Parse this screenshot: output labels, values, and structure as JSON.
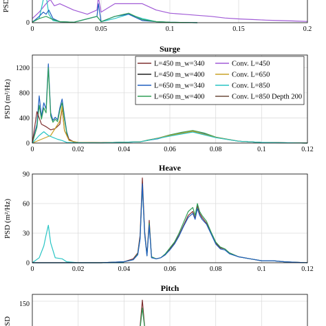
{
  "colors": {
    "L450_340": "#7f2f2f",
    "L450_400": "#1f1f1f",
    "L650_340": "#1f5fbf",
    "L650_400": "#2e9e57",
    "conv450": "#a05ad6",
    "conv650": "#c9a227",
    "conv850": "#27c4c4",
    "conv850d200": "#6b4a3a"
  },
  "chart_data": [
    {
      "id": "top",
      "type": "line",
      "title": "",
      "ylabel": "PSD",
      "xlim": [
        0,
        0.2
      ],
      "xticks": [
        "0",
        "0.05",
        "0.1",
        "0.15",
        "0.2"
      ],
      "yticks": [
        "0"
      ],
      "series": [
        {
          "name": "Conv. L=450",
          "color_key": "conv450",
          "x": [
            0,
            0.005,
            0.01,
            0.013,
            0.016,
            0.02,
            0.03,
            0.04,
            0.047,
            0.048,
            0.05,
            0.06,
            0.07,
            0.08,
            0.09,
            0.1,
            0.11,
            0.12,
            0.13,
            0.14,
            0.15,
            0.16,
            0.17,
            0.18,
            0.19,
            0.2
          ],
          "y": [
            0.2,
            0.5,
            0.9,
            1.1,
            0.8,
            0.9,
            0.6,
            0.4,
            0.6,
            1.2,
            0.5,
            0.9,
            0.9,
            0.9,
            0.6,
            0.45,
            0.4,
            0.35,
            0.3,
            0.22,
            0.18,
            0.15,
            0.12,
            0.1,
            0.08,
            0.06
          ]
        },
        {
          "name": "Conv. L=850",
          "color_key": "conv850",
          "x": [
            0,
            0.005,
            0.008,
            0.01,
            0.012,
            0.015,
            0.02,
            0.03,
            0.047,
            0.05,
            0.06,
            0.07,
            0.08,
            0.09,
            0.1,
            0.12
          ],
          "y": [
            0.05,
            0.2,
            1.1,
            1.3,
            0.4,
            0.1,
            0.05,
            0.02,
            0.3,
            0.05,
            0.2,
            0.4,
            0.2,
            0.05,
            0.02,
            0.0
          ]
        },
        {
          "name": "L=650 m_w=340",
          "color_key": "L650_340",
          "x": [
            0,
            0.005,
            0.008,
            0.01,
            0.012,
            0.015,
            0.02,
            0.03,
            0.047,
            0.048,
            0.05,
            0.06,
            0.07,
            0.075,
            0.08,
            0.09,
            0.1,
            0.12
          ],
          "y": [
            0.02,
            0.3,
            0.5,
            0.4,
            0.6,
            0.2,
            0.05,
            0.02,
            0.3,
            0.9,
            0.05,
            0.3,
            0.4,
            0.25,
            0.1,
            0.05,
            0.02,
            0.0
          ]
        },
        {
          "name": "L=650 m_w=400",
          "color_key": "L650_400",
          "x": [
            0,
            0.005,
            0.01,
            0.015,
            0.02,
            0.03,
            0.047,
            0.05,
            0.06,
            0.07,
            0.08,
            0.09,
            0.1,
            0.12
          ],
          "y": [
            0.02,
            0.2,
            0.3,
            0.15,
            0.05,
            0.02,
            0.3,
            0.05,
            0.3,
            0.45,
            0.15,
            0.05,
            0.02,
            0.0
          ]
        }
      ]
    },
    {
      "id": "surge",
      "type": "line",
      "title": "Surge",
      "ylabel": "PSD (m²/Hz)",
      "xlim": [
        0,
        0.12
      ],
      "ylim": [
        0,
        1400
      ],
      "xticks": [
        "0",
        "0.02",
        "0.04",
        "0.06",
        "0.08",
        "0.1",
        "0.12"
      ],
      "yticks": [
        "0",
        "400",
        "800",
        "1200"
      ],
      "legend": [
        {
          "label": "L=450 m_w=340",
          "color_key": "L450_340"
        },
        {
          "label": "L=450 m_w=400",
          "color_key": "L450_400"
        },
        {
          "label": "L=650 m_w=340",
          "color_key": "L650_340"
        },
        {
          "label": "L=650 m_w=400",
          "color_key": "L650_400"
        },
        {
          "label": "Conv. L=450",
          "color_key": "conv450"
        },
        {
          "label": "Conv. L=650",
          "color_key": "conv650"
        },
        {
          "label": "Conv. L=850",
          "color_key": "conv850"
        },
        {
          "label": "Conv. L=850 Depth 200",
          "color_key": "conv850d200"
        }
      ],
      "series": [
        {
          "name": "L=650 m_w=340",
          "color_key": "L650_340",
          "x": [
            0,
            0.002,
            0.003,
            0.004,
            0.005,
            0.006,
            0.007,
            0.008,
            0.009,
            0.01,
            0.011,
            0.012,
            0.013,
            0.014,
            0.015,
            0.016,
            0.018,
            0.02,
            0.03,
            0.047,
            0.05,
            0.055,
            0.06,
            0.065,
            0.07,
            0.075,
            0.08,
            0.09,
            0.1,
            0.12
          ],
          "y": [
            0,
            300,
            750,
            420,
            640,
            540,
            1260,
            480,
            360,
            410,
            370,
            560,
            700,
            420,
            180,
            60,
            20,
            10,
            5,
            20,
            40,
            70,
            120,
            160,
            185,
            150,
            90,
            30,
            10,
            0
          ]
        },
        {
          "name": "L=650 m_w=400",
          "color_key": "L650_400",
          "x": [
            0,
            0.002,
            0.003,
            0.004,
            0.005,
            0.006,
            0.007,
            0.008,
            0.009,
            0.01,
            0.011,
            0.012,
            0.013,
            0.014,
            0.015,
            0.016,
            0.018,
            0.02,
            0.03,
            0.047,
            0.05,
            0.055,
            0.06,
            0.065,
            0.07,
            0.075,
            0.08,
            0.09,
            0.1,
            0.12
          ],
          "y": [
            0,
            250,
            600,
            380,
            560,
            480,
            1200,
            430,
            330,
            380,
            340,
            520,
            640,
            380,
            160,
            50,
            20,
            10,
            5,
            20,
            45,
            80,
            130,
            170,
            200,
            160,
            95,
            30,
            10,
            0
          ]
        },
        {
          "name": "L=450 m_w=340",
          "color_key": "L450_340",
          "x": [
            0,
            0.002,
            0.004,
            0.006,
            0.008,
            0.01,
            0.012,
            0.013,
            0.014,
            0.016,
            0.018,
            0.02,
            0.03,
            0.047,
            0.05,
            0.06,
            0.07,
            0.08,
            0.09,
            0.1,
            0.12
          ],
          "y": [
            0,
            500,
            300,
            260,
            210,
            230,
            300,
            560,
            200,
            60,
            20,
            10,
            5,
            20,
            40,
            120,
            180,
            90,
            30,
            10,
            0
          ]
        },
        {
          "name": "Conv. L=650",
          "color_key": "conv650",
          "x": [
            0,
            0.004,
            0.008,
            0.012,
            0.013,
            0.014,
            0.016,
            0.02,
            0.03,
            0.047,
            0.05,
            0.06,
            0.07,
            0.08,
            0.09,
            0.1,
            0.12
          ],
          "y": [
            0,
            60,
            120,
            350,
            580,
            200,
            40,
            10,
            5,
            20,
            40,
            120,
            190,
            90,
            30,
            10,
            0
          ]
        },
        {
          "name": "Conv. L=850",
          "color_key": "conv850",
          "x": [
            0,
            0.003,
            0.005,
            0.007,
            0.009,
            0.011,
            0.013,
            0.015,
            0.02,
            0.03,
            0.047,
            0.05,
            0.06,
            0.07,
            0.08,
            0.09,
            0.1,
            0.12
          ],
          "y": [
            0,
            120,
            180,
            120,
            90,
            60,
            40,
            10,
            5,
            3,
            20,
            40,
            110,
            175,
            85,
            30,
            10,
            0
          ]
        }
      ]
    },
    {
      "id": "heave",
      "type": "line",
      "title": "Heave",
      "ylabel": "PSD (m²/Hz)",
      "xlim": [
        0,
        0.12
      ],
      "ylim": [
        0,
        90
      ],
      "xticks": [
        "0",
        "0.02",
        "0.04",
        "0.06",
        "0.08",
        "0.1",
        "0.12"
      ],
      "yticks": [
        "0",
        "30",
        "60",
        "90"
      ],
      "series": [
        {
          "name": "Conv. L=850",
          "color_key": "conv850",
          "x": [
            0,
            0.003,
            0.005,
            0.006,
            0.007,
            0.008,
            0.01,
            0.013,
            0.015,
            0.02,
            0.03,
            0.04
          ],
          "y": [
            0,
            5,
            17,
            28,
            38,
            20,
            5,
            4,
            1,
            0,
            0,
            0
          ]
        },
        {
          "name": "L=450 m_w=340",
          "color_key": "L450_340",
          "x": [
            0,
            0.03,
            0.04,
            0.044,
            0.046,
            0.047,
            0.048,
            0.049,
            0.05,
            0.051,
            0.052,
            0.054,
            0.056,
            0.058,
            0.06,
            0.062,
            0.064,
            0.066,
            0.068,
            0.07,
            0.071,
            0.072,
            0.073,
            0.074,
            0.076,
            0.078,
            0.08,
            0.082,
            0.084,
            0.086,
            0.09,
            0.095,
            0.1,
            0.105,
            0.11,
            0.115,
            0.12
          ],
          "y": [
            0,
            0,
            1,
            4,
            10,
            28,
            86,
            32,
            8,
            43,
            6,
            4,
            5,
            8,
            14,
            20,
            28,
            38,
            48,
            52,
            45,
            58,
            50,
            46,
            40,
            30,
            20,
            15,
            14,
            10,
            6,
            4,
            2,
            2,
            1,
            0.5,
            0
          ]
        },
        {
          "name": "L=650 m_w=400",
          "color_key": "L650_400",
          "x": [
            0,
            0.03,
            0.04,
            0.044,
            0.046,
            0.047,
            0.048,
            0.049,
            0.05,
            0.051,
            0.052,
            0.054,
            0.056,
            0.058,
            0.06,
            0.062,
            0.064,
            0.066,
            0.068,
            0.07,
            0.071,
            0.072,
            0.073,
            0.074,
            0.076,
            0.078,
            0.08,
            0.082,
            0.084,
            0.086,
            0.09,
            0.095,
            0.1,
            0.105,
            0.11,
            0.115,
            0.12
          ],
          "y": [
            0,
            0,
            1,
            3,
            9,
            25,
            78,
            30,
            7,
            40,
            6,
            4,
            5,
            9,
            15,
            21,
            30,
            41,
            52,
            56,
            48,
            60,
            52,
            48,
            42,
            31,
            21,
            16,
            14,
            10,
            6,
            4,
            2,
            2,
            1,
            0.5,
            0
          ]
        },
        {
          "name": "L=650 m_w=340",
          "color_key": "L650_340",
          "x": [
            0,
            0.03,
            0.04,
            0.044,
            0.046,
            0.047,
            0.048,
            0.049,
            0.05,
            0.051,
            0.052,
            0.054,
            0.056,
            0.058,
            0.06,
            0.062,
            0.064,
            0.066,
            0.068,
            0.07,
            0.071,
            0.072,
            0.073,
            0.074,
            0.076,
            0.078,
            0.08,
            0.082,
            0.084,
            0.086,
            0.09,
            0.095,
            0.1,
            0.105,
            0.11,
            0.115,
            0.12
          ],
          "y": [
            0,
            0,
            1,
            3,
            8,
            24,
            80,
            29,
            7,
            38,
            5,
            4,
            5,
            8,
            13,
            19,
            27,
            37,
            46,
            50,
            44,
            55,
            48,
            44,
            39,
            29,
            19,
            14,
            13,
            9,
            6,
            4,
            2,
            2,
            1,
            0.5,
            0
          ]
        }
      ]
    },
    {
      "id": "pitch",
      "type": "line",
      "title": "Pitch",
      "ylabel": "PSD",
      "xlim": [
        0,
        0.12
      ],
      "ylim": [
        0,
        180
      ],
      "yticks": [
        "150"
      ],
      "series": [
        {
          "name": "L=450 m_w=340",
          "color_key": "L450_340",
          "x": [
            0,
            0.04,
            0.045,
            0.047,
            0.048,
            0.049,
            0.05,
            0.055,
            0.06,
            0.07
          ],
          "y": [
            0,
            0,
            10,
            40,
            155,
            40,
            10,
            5,
            8,
            6
          ]
        },
        {
          "name": "L=650 m_w=400",
          "color_key": "L650_400",
          "x": [
            0,
            0.04,
            0.045,
            0.047,
            0.048,
            0.049,
            0.05,
            0.055,
            0.06,
            0.07
          ],
          "y": [
            0,
            0,
            8,
            30,
            120,
            35,
            10,
            5,
            8,
            6
          ]
        }
      ]
    }
  ]
}
